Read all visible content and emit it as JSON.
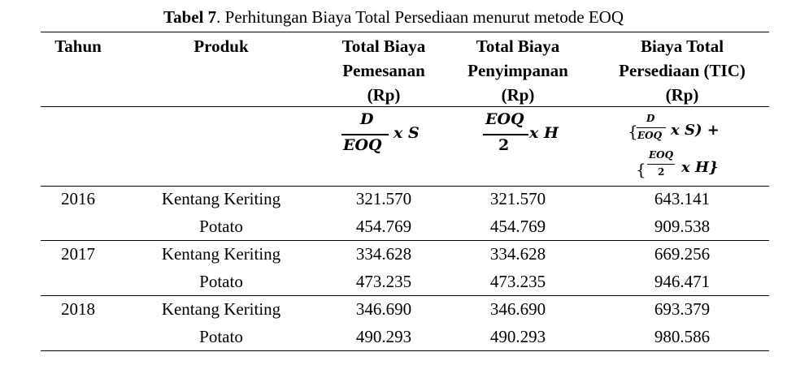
{
  "caption": {
    "label": "Tabel 7",
    "text": ". Perhitungan Biaya Total Persediaan menurut metode EOQ"
  },
  "headers": {
    "tahun": "Tahun",
    "produk": "Produk",
    "total_biaya_pemesanan": [
      "Total Biaya",
      "Pemesanan",
      "(Rp)"
    ],
    "total_biaya_penyimpanan": [
      "Total Biaya",
      "Penyimpanan",
      "(Rp)"
    ],
    "biaya_total_persediaan": [
      "Biaya Total",
      "Persediaan (TIC)",
      "(Rp)"
    ]
  },
  "formulas": {
    "pemesanan": {
      "numerator": "D",
      "denominator": "EOQ",
      "tail": "x S"
    },
    "penyimpanan": {
      "numerator": "EOQ",
      "denominator": "2",
      "tail": "x H"
    },
    "tic_line1": {
      "open": "{",
      "numerator": "D",
      "denominator": "EOQ",
      "tail": "x S) +"
    },
    "tic_line2": {
      "open": "{",
      "numerator": "EOQ",
      "denominator": "2",
      "tail": "x H}"
    }
  },
  "rows": [
    {
      "tahun": "2016",
      "produk": "Kentang Keriting",
      "pemesanan": "321.570",
      "penyimpanan": "321.570",
      "tic": "643.141"
    },
    {
      "tahun": "",
      "produk": "Potato",
      "pemesanan": "454.769",
      "penyimpanan": "454.769",
      "tic": "909.538"
    },
    {
      "tahun": "2017",
      "produk": "Kentang Keriting",
      "pemesanan": "334.628",
      "penyimpanan": "334.628",
      "tic": "669.256"
    },
    {
      "tahun": "",
      "produk": "Potato",
      "pemesanan": "473.235",
      "penyimpanan": "473.235",
      "tic": "946.471"
    },
    {
      "tahun": "2018",
      "produk": "Kentang Keriting",
      "pemesanan": "346.690",
      "penyimpanan": "346.690",
      "tic": "693.379"
    },
    {
      "tahun": "",
      "produk": "Potato",
      "pemesanan": "490.293",
      "penyimpanan": "490.293",
      "tic": "980.586"
    }
  ]
}
